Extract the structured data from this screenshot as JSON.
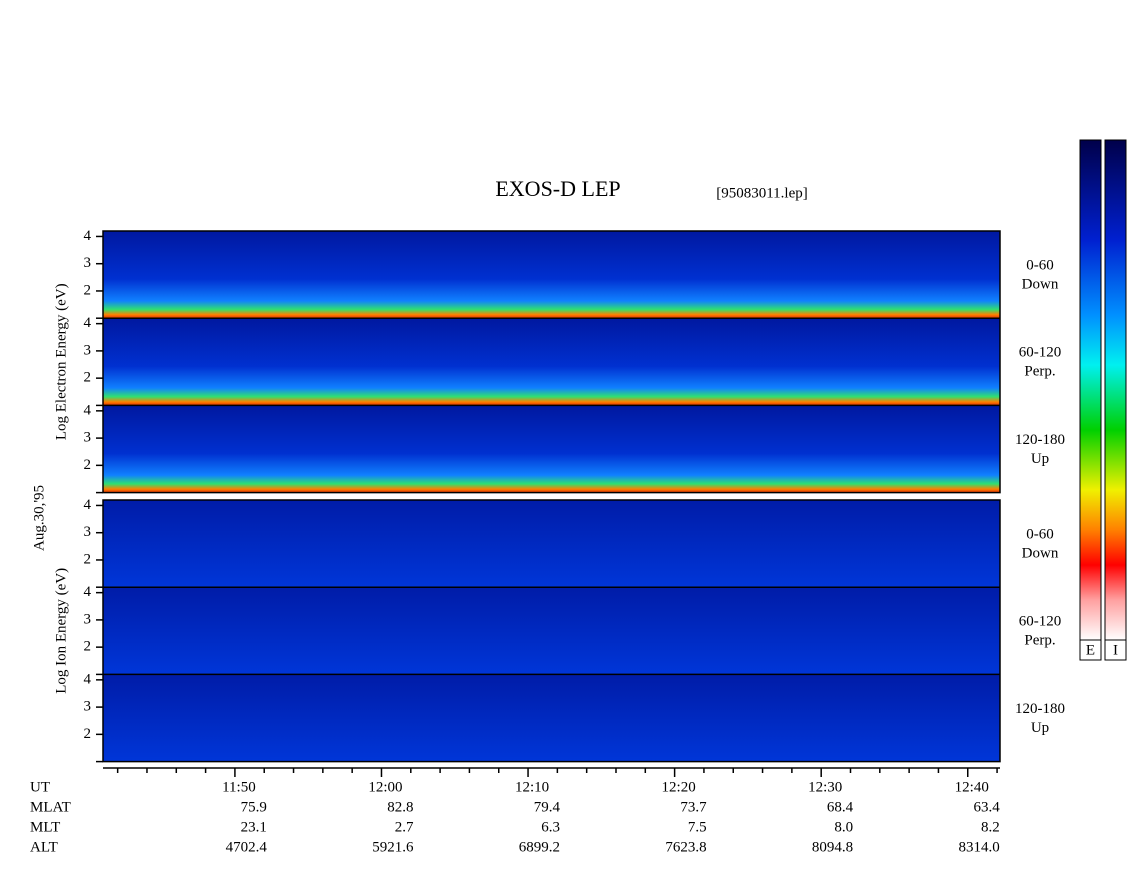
{
  "chart_data": {
    "type": "spectrogram",
    "title": "EXOS-D LEP",
    "file": "[95083011.lep]",
    "date": "Aug.30,'95",
    "groups": [
      {
        "axis_label": "Log Electron Energy (eV)",
        "panels": [
          {
            "label": "0-60",
            "sublabel": "Down"
          },
          {
            "label": "60-120",
            "sublabel": "Perp."
          },
          {
            "label": "120-180",
            "sublabel": "Up"
          }
        ]
      },
      {
        "axis_label": "Log Ion Energy (eV)",
        "panels": [
          {
            "label": "0-60",
            "sublabel": "Down"
          },
          {
            "label": "60-120",
            "sublabel": "Perp."
          },
          {
            "label": "120-180",
            "sublabel": "Up"
          }
        ]
      }
    ],
    "ylim": [
      1,
      4.2
    ],
    "yticks": [
      1,
      2,
      3,
      4
    ],
    "ytick_labels": [
      "2",
      "3",
      "4"
    ],
    "xlim": [
      701,
      762.2
    ],
    "xticks": [
      {
        "value": 710,
        "label": "11:50"
      },
      {
        "value": 720,
        "label": "12:00"
      },
      {
        "value": 730,
        "label": "12:10"
      },
      {
        "value": 740,
        "label": "12:20"
      },
      {
        "value": 750,
        "label": "12:30"
      },
      {
        "value": 760,
        "label": "12:40"
      }
    ],
    "xminor_ticks": [
      702,
      704,
      706,
      708,
      712,
      714,
      716,
      718,
      722,
      724,
      726,
      728,
      732,
      734,
      736,
      738,
      742,
      744,
      746,
      748,
      752,
      754,
      756,
      758,
      762
    ],
    "x_label": "UT",
    "orbit": [
      {
        "name": "MLAT",
        "values": [
          "75.9",
          "82.8",
          "79.4",
          "73.7",
          "68.4",
          "63.4"
        ]
      },
      {
        "name": "MLT",
        "values": [
          "23.1",
          "2.7",
          "6.3",
          "7.5",
          "8.0",
          "8.2"
        ]
      },
      {
        "name": "ALT",
        "values": [
          "4702.4",
          "5921.6",
          "6899.2",
          "7623.8",
          "8094.8",
          "8314.0"
        ]
      }
    ],
    "colorbars": [
      "E",
      "I"
    ]
  }
}
